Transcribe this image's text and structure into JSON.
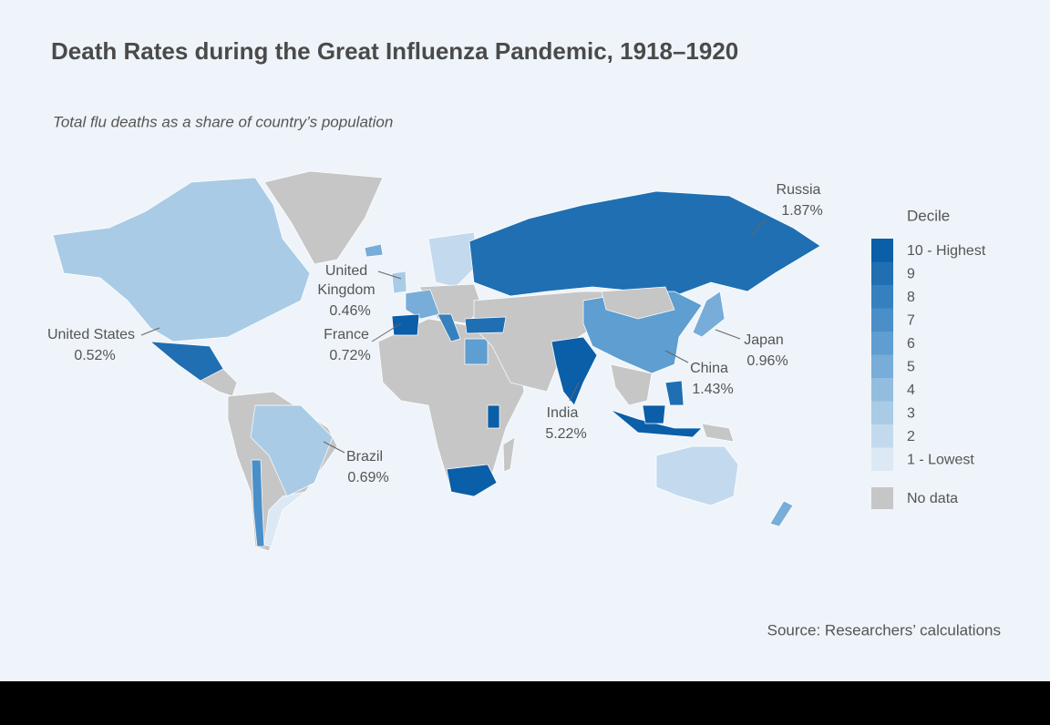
{
  "header": {
    "title": "Death Rates during the Great Influenza Pandemic, 1918–1920",
    "subtitle": "Total flu deaths as a share of country’s population"
  },
  "annotations": [
    {
      "lines": [
        "Russia"
      ],
      "value": "1.87%"
    },
    {
      "lines": [
        "United States"
      ],
      "value": "0.52%"
    },
    {
      "lines": [
        "United",
        "Kingdom"
      ],
      "value": "0.46%"
    },
    {
      "lines": [
        "France"
      ],
      "value": "0.72%"
    },
    {
      "lines": [
        "Brazil"
      ],
      "value": "0.69%"
    },
    {
      "lines": [
        "India"
      ],
      "value": "5.22%"
    },
    {
      "lines": [
        "China"
      ],
      "value": "1.43%"
    },
    {
      "lines": [
        "Japan"
      ],
      "value": "0.96%"
    }
  ],
  "legend": {
    "title": "Decile",
    "items": [
      {
        "label": "10 - Highest",
        "color": "#0b5ea8"
      },
      {
        "label": "9",
        "color": "#1f6fb2"
      },
      {
        "label": "8",
        "color": "#3580bf"
      },
      {
        "label": "7",
        "color": "#4a8fc8"
      },
      {
        "label": "6",
        "color": "#5e9ed0"
      },
      {
        "label": "5",
        "color": "#77add8"
      },
      {
        "label": "4",
        "color": "#92bddf"
      },
      {
        "label": "3",
        "color": "#a9cbe6"
      },
      {
        "label": "2",
        "color": "#c3daee"
      },
      {
        "label": "1 - Lowest",
        "color": "#dce9f4"
      }
    ],
    "no_data": {
      "label": "No data",
      "color": "#c6c6c6"
    }
  },
  "source": "Source: Researchers’ calculations"
}
